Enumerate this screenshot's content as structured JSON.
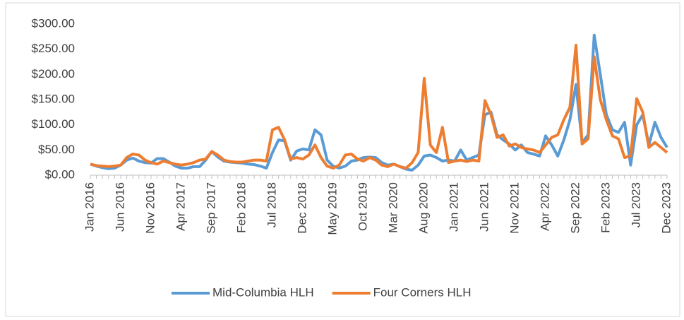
{
  "chart_data": {
    "type": "line",
    "categories": [
      "Jan 2016",
      null,
      null,
      null,
      null,
      "Jun 2016",
      null,
      null,
      null,
      null,
      "Nov 2016",
      null,
      null,
      null,
      null,
      "Apr 2017",
      null,
      null,
      null,
      null,
      "Sep 2017",
      null,
      null,
      null,
      null,
      "Feb 2018",
      null,
      null,
      null,
      null,
      "Jul 2018",
      null,
      null,
      null,
      null,
      "Dec 2018",
      null,
      null,
      null,
      null,
      "May 2019",
      null,
      null,
      null,
      null,
      "Oct 2019",
      null,
      null,
      null,
      null,
      "Mar 2020",
      null,
      null,
      null,
      null,
      "Aug 2020",
      null,
      null,
      null,
      null,
      "Jan 2021",
      null,
      null,
      null,
      null,
      "Jun 2021",
      null,
      null,
      null,
      null,
      "Nov 2021",
      null,
      null,
      null,
      null,
      "Apr 2022",
      null,
      null,
      null,
      null,
      "Sep 2022",
      null,
      null,
      null,
      null,
      "Feb 2023",
      null,
      null,
      null,
      null,
      "Jul 2023",
      null,
      null,
      null,
      null,
      "Dec 2023"
    ],
    "series": [
      {
        "name": "Mid-Columbia HLH",
        "color": "#5b9bd5",
        "values": [
          22,
          18,
          15,
          13,
          14,
          20,
          30,
          34,
          28,
          25,
          24,
          33,
          33,
          26,
          18,
          14,
          14,
          17,
          17,
          30,
          47,
          36,
          28,
          26,
          25,
          24,
          22,
          21,
          18,
          14,
          45,
          70,
          68,
          30,
          48,
          52,
          50,
          90,
          80,
          30,
          18,
          14,
          18,
          28,
          30,
          35,
          36,
          35,
          25,
          20,
          22,
          17,
          12,
          10,
          20,
          38,
          40,
          35,
          28,
          30,
          28,
          50,
          30,
          35,
          40,
          120,
          125,
          80,
          70,
          62,
          50,
          60,
          45,
          42,
          38,
          78,
          60,
          38,
          70,
          110,
          180,
          65,
          80,
          278,
          200,
          120,
          90,
          85,
          105,
          20,
          100,
          120,
          60,
          105,
          75,
          55
        ]
      },
      {
        "name": "Four Corners HLH",
        "color": "#ed7d31",
        "values": [
          22,
          19,
          18,
          17,
          18,
          20,
          35,
          42,
          40,
          30,
          25,
          22,
          28,
          25,
          22,
          20,
          22,
          25,
          30,
          32,
          47,
          40,
          30,
          27,
          26,
          26,
          28,
          30,
          30,
          28,
          90,
          95,
          70,
          32,
          35,
          32,
          40,
          60,
          35,
          18,
          14,
          20,
          40,
          42,
          32,
          28,
          35,
          30,
          20,
          17,
          22,
          17,
          14,
          25,
          45,
          192,
          60,
          45,
          95,
          25,
          28,
          30,
          27,
          30,
          28,
          148,
          120,
          75,
          80,
          58,
          62,
          55,
          52,
          50,
          45,
          60,
          75,
          80,
          110,
          135,
          258,
          62,
          72,
          235,
          150,
          110,
          78,
          72,
          35,
          38,
          152,
          125,
          55,
          65,
          55,
          45
        ]
      }
    ],
    "ylim": [
      0,
      300
    ],
    "yticks": [
      {
        "value": 0,
        "label": "$0.00"
      },
      {
        "value": 50,
        "label": "$50.00"
      },
      {
        "value": 100,
        "label": "$100.00"
      },
      {
        "value": 150,
        "label": "$150.00"
      },
      {
        "value": 200,
        "label": "$200.00"
      },
      {
        "value": 250,
        "label": "$250.00"
      },
      {
        "value": 300,
        "label": "$300.00"
      }
    ],
    "grid": false,
    "legend": "bottom"
  }
}
